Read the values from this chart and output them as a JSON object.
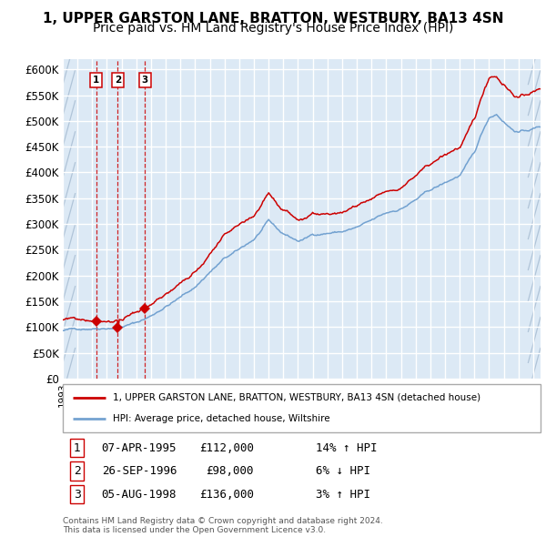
{
  "title_line1": "1, UPPER GARSTON LANE, BRATTON, WESTBURY, BA13 4SN",
  "title_line2": "Price paid vs. HM Land Registry's House Price Index (HPI)",
  "xlim_start": 1993.0,
  "xlim_end": 2025.5,
  "ylim_min": 0,
  "ylim_max": 620000,
  "yticks": [
    0,
    50000,
    100000,
    150000,
    200000,
    250000,
    300000,
    350000,
    400000,
    450000,
    500000,
    550000,
    600000
  ],
  "ytick_labels": [
    "£0",
    "£50K",
    "£100K",
    "£150K",
    "£200K",
    "£250K",
    "£300K",
    "£350K",
    "£400K",
    "£450K",
    "£500K",
    "£550K",
    "£600K"
  ],
  "sale_dates": [
    1995.27,
    1996.74,
    1998.59
  ],
  "sale_prices": [
    112000,
    98000,
    136000
  ],
  "sale_labels": [
    "1",
    "2",
    "3"
  ],
  "line_color_red": "#cc0000",
  "line_color_blue": "#6699cc",
  "background_color": "#dce9f5",
  "grid_color": "#ffffff",
  "hatched_region_color": "#b0c4d8",
  "legend_label_red": "1, UPPER GARSTON LANE, BRATTON, WESTBURY, BA13 4SN (detached house)",
  "legend_label_blue": "HPI: Average price, detached house, Wiltshire",
  "table_rows": [
    {
      "num": "1",
      "date": "07-APR-1995",
      "price": "£112,000",
      "change": "14% ↑ HPI"
    },
    {
      "num": "2",
      "date": "26-SEP-1996",
      "price": "£98,000",
      "change": "6% ↓ HPI"
    },
    {
      "num": "3",
      "date": "05-AUG-1998",
      "price": "£136,000",
      "change": "3% ↑ HPI"
    }
  ],
  "footnote": "Contains HM Land Registry data © Crown copyright and database right 2024.\nThis data is licensed under the Open Government Licence v3.0.",
  "title_fontsize": 11,
  "subtitle_fontsize": 10,
  "hpi_anchors_x": [
    1993.0,
    1994.0,
    1995.0,
    1996.0,
    1997.0,
    1998.0,
    1999.0,
    2000.0,
    2001.0,
    2002.0,
    2003.0,
    2004.0,
    2005.0,
    2006.0,
    2007.0,
    2007.8,
    2008.5,
    2009.0,
    2009.5,
    2010.0,
    2011.0,
    2012.0,
    2013.0,
    2014.0,
    2015.0,
    2016.0,
    2017.0,
    2018.0,
    2019.0,
    2020.0,
    2021.0,
    2021.5,
    2022.0,
    2022.5,
    2023.0,
    2023.5,
    2024.0,
    2024.5,
    2025.0,
    2025.5
  ],
  "hpi_anchors_y": [
    93000,
    96000,
    100000,
    104000,
    108000,
    115000,
    128000,
    148000,
    165000,
    185000,
    215000,
    240000,
    255000,
    275000,
    308000,
    285000,
    275000,
    268000,
    272000,
    280000,
    285000,
    288000,
    295000,
    305000,
    318000,
    328000,
    345000,
    362000,
    375000,
    390000,
    430000,
    468000,
    500000,
    508000,
    495000,
    482000,
    476000,
    478000,
    482000,
    486000
  ]
}
